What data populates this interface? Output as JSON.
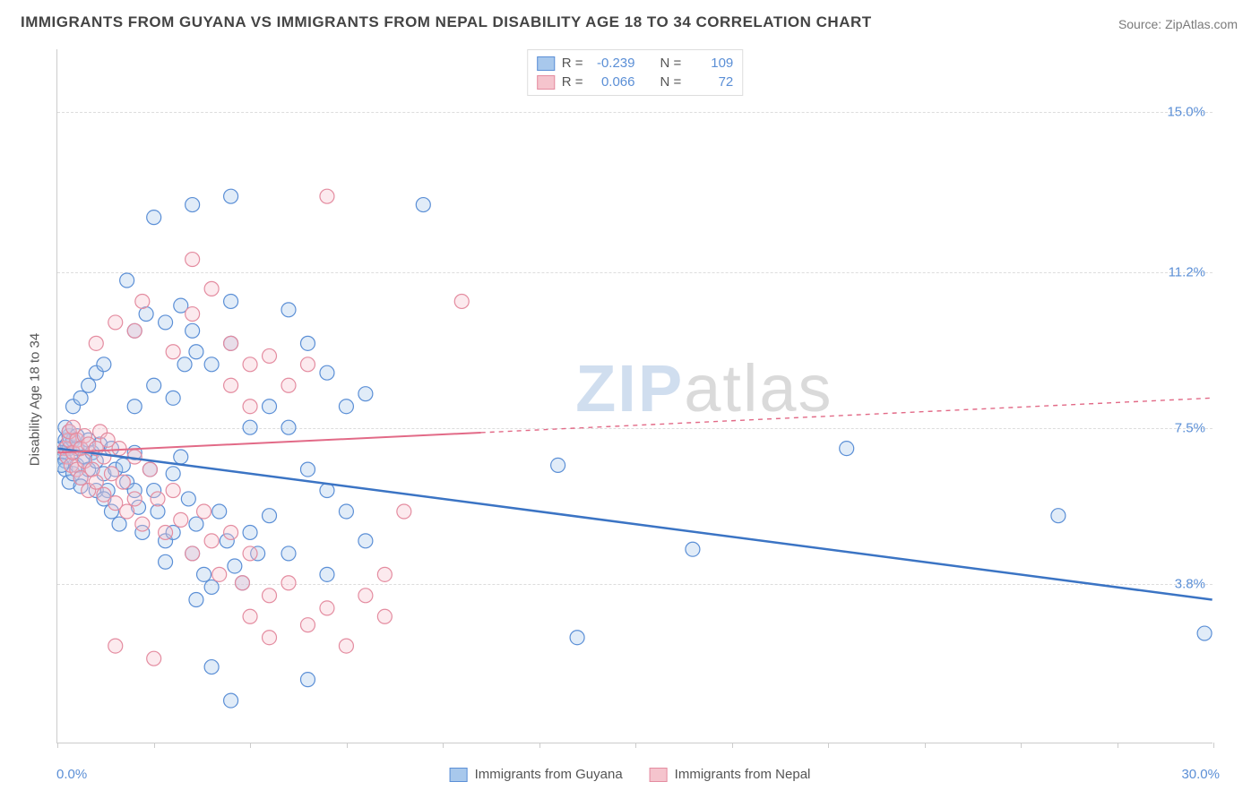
{
  "title": "IMMIGRANTS FROM GUYANA VS IMMIGRANTS FROM NEPAL DISABILITY AGE 18 TO 34 CORRELATION CHART",
  "source_label": "Source:",
  "source_value": "ZipAtlas.com",
  "y_axis_label": "Disability Age 18 to 34",
  "watermark_a": "ZIP",
  "watermark_b": "atlas",
  "chart": {
    "type": "scatter",
    "xlim": [
      0.0,
      30.0
    ],
    "ylim": [
      0.0,
      16.5
    ],
    "x_min_label": "0.0%",
    "x_max_label": "30.0%",
    "y_ticks": [
      3.8,
      7.5,
      11.2,
      15.0
    ],
    "y_tick_labels": [
      "3.8%",
      "7.5%",
      "11.2%",
      "15.0%"
    ],
    "x_tick_positions": [
      0,
      2.5,
      5.0,
      7.5,
      10.0,
      12.5,
      15.0,
      17.5,
      20.0,
      22.5,
      25.0,
      27.5,
      30.0
    ],
    "background_color": "#ffffff",
    "grid_color": "#dddddd",
    "axis_color": "#cccccc",
    "tick_label_color": "#5b8fd6",
    "marker_radius": 8,
    "marker_stroke_width": 1.2,
    "marker_fill_opacity": 0.35,
    "series": [
      {
        "name": "Immigrants from Guyana",
        "color_fill": "#a8c8ec",
        "color_stroke": "#5b8fd6",
        "R": "-0.239",
        "N": "109",
        "trend": {
          "x1": 0.0,
          "y1": 7.0,
          "x2": 30.0,
          "y2": 3.4,
          "solid_until_x": 30.0,
          "stroke": "#3b74c4",
          "width": 2.5
        },
        "points": [
          [
            0.1,
            7.0
          ],
          [
            0.2,
            7.2
          ],
          [
            0.15,
            6.8
          ],
          [
            0.25,
            7.1
          ],
          [
            0.3,
            7.0
          ],
          [
            0.1,
            6.9
          ],
          [
            0.2,
            6.7
          ],
          [
            0.3,
            7.3
          ],
          [
            0.2,
            6.5
          ],
          [
            0.1,
            6.6
          ],
          [
            0.3,
            6.2
          ],
          [
            0.4,
            6.4
          ],
          [
            0.2,
            7.5
          ],
          [
            0.4,
            7.2
          ],
          [
            0.5,
            7.0
          ],
          [
            0.3,
            7.4
          ],
          [
            0.4,
            6.9
          ],
          [
            0.5,
            6.6
          ],
          [
            0.6,
            6.3
          ],
          [
            0.5,
            7.3
          ],
          [
            0.6,
            7.0
          ],
          [
            0.7,
            6.8
          ],
          [
            0.8,
            6.5
          ],
          [
            0.6,
            6.1
          ],
          [
            0.8,
            7.2
          ],
          [
            0.9,
            6.9
          ],
          [
            1.0,
            6.7
          ],
          [
            1.0,
            6.0
          ],
          [
            1.1,
            7.1
          ],
          [
            1.2,
            6.4
          ],
          [
            1.3,
            6.0
          ],
          [
            1.4,
            7.0
          ],
          [
            1.5,
            6.5
          ],
          [
            1.2,
            5.8
          ],
          [
            1.4,
            5.5
          ],
          [
            1.6,
            5.2
          ],
          [
            1.7,
            6.6
          ],
          [
            1.8,
            6.2
          ],
          [
            2.0,
            6.9
          ],
          [
            2.0,
            6.0
          ],
          [
            2.1,
            5.6
          ],
          [
            2.2,
            5.0
          ],
          [
            2.4,
            6.5
          ],
          [
            2.5,
            6.0
          ],
          [
            2.6,
            5.5
          ],
          [
            2.8,
            4.8
          ],
          [
            3.0,
            6.4
          ],
          [
            3.0,
            5.0
          ],
          [
            2.8,
            4.3
          ],
          [
            3.2,
            6.8
          ],
          [
            3.4,
            5.8
          ],
          [
            3.6,
            5.2
          ],
          [
            3.5,
            4.5
          ],
          [
            3.8,
            4.0
          ],
          [
            4.0,
            3.7
          ],
          [
            3.6,
            3.4
          ],
          [
            4.2,
            5.5
          ],
          [
            4.4,
            4.8
          ],
          [
            4.6,
            4.2
          ],
          [
            4.8,
            3.8
          ],
          [
            5.0,
            5.0
          ],
          [
            5.2,
            4.5
          ],
          [
            5.5,
            5.4
          ],
          [
            2.0,
            8.0
          ],
          [
            2.5,
            8.5
          ],
          [
            3.0,
            8.2
          ],
          [
            3.3,
            9.0
          ],
          [
            3.6,
            9.3
          ],
          [
            4.0,
            9.0
          ],
          [
            4.5,
            9.5
          ],
          [
            2.0,
            9.8
          ],
          [
            2.3,
            10.2
          ],
          [
            2.8,
            10.0
          ],
          [
            3.2,
            10.4
          ],
          [
            3.5,
            9.8
          ],
          [
            1.8,
            11.0
          ],
          [
            4.5,
            10.5
          ],
          [
            6.0,
            10.3
          ],
          [
            6.5,
            9.5
          ],
          [
            7.0,
            8.8
          ],
          [
            7.5,
            8.0
          ],
          [
            8.0,
            8.3
          ],
          [
            6.0,
            7.5
          ],
          [
            6.5,
            6.5
          ],
          [
            7.0,
            6.0
          ],
          [
            7.5,
            5.5
          ],
          [
            5.0,
            7.5
          ],
          [
            5.5,
            8.0
          ],
          [
            6.0,
            4.5
          ],
          [
            7.0,
            4.0
          ],
          [
            8.0,
            4.8
          ],
          [
            2.5,
            12.5
          ],
          [
            3.5,
            12.8
          ],
          [
            4.5,
            13.0
          ],
          [
            9.5,
            12.8
          ],
          [
            4.0,
            1.8
          ],
          [
            4.5,
            1.0
          ],
          [
            6.5,
            1.5
          ],
          [
            13.0,
            6.6
          ],
          [
            13.5,
            2.5
          ],
          [
            16.5,
            4.6
          ],
          [
            20.5,
            7.0
          ],
          [
            26.0,
            5.4
          ],
          [
            29.8,
            2.6
          ],
          [
            0.4,
            8.0
          ],
          [
            0.6,
            8.2
          ],
          [
            0.8,
            8.5
          ],
          [
            1.0,
            8.8
          ],
          [
            1.2,
            9.0
          ]
        ]
      },
      {
        "name": "Immigrants from Nepal",
        "color_fill": "#f5c4cd",
        "color_stroke": "#e48ca0",
        "R": "0.066",
        "N": "72",
        "trend": {
          "x1": 0.0,
          "y1": 6.9,
          "x2": 30.0,
          "y2": 8.2,
          "solid_until_x": 11.0,
          "stroke": "#e26a87",
          "width": 2
        },
        "points": [
          [
            0.2,
            7.0
          ],
          [
            0.3,
            7.2
          ],
          [
            0.25,
            6.8
          ],
          [
            0.35,
            6.6
          ],
          [
            0.3,
            7.4
          ],
          [
            0.4,
            6.9
          ],
          [
            0.4,
            7.5
          ],
          [
            0.5,
            7.2
          ],
          [
            0.5,
            6.5
          ],
          [
            0.6,
            7.0
          ],
          [
            0.6,
            6.3
          ],
          [
            0.7,
            7.3
          ],
          [
            0.7,
            6.7
          ],
          [
            0.8,
            6.0
          ],
          [
            0.8,
            7.1
          ],
          [
            0.9,
            6.5
          ],
          [
            1.0,
            7.0
          ],
          [
            1.0,
            6.2
          ],
          [
            1.1,
            7.4
          ],
          [
            1.2,
            6.8
          ],
          [
            1.2,
            5.9
          ],
          [
            1.3,
            7.2
          ],
          [
            1.4,
            6.4
          ],
          [
            1.5,
            5.7
          ],
          [
            1.6,
            7.0
          ],
          [
            1.7,
            6.2
          ],
          [
            1.8,
            5.5
          ],
          [
            2.0,
            6.8
          ],
          [
            2.0,
            5.8
          ],
          [
            2.2,
            5.2
          ],
          [
            2.4,
            6.5
          ],
          [
            2.6,
            5.8
          ],
          [
            2.8,
            5.0
          ],
          [
            3.0,
            6.0
          ],
          [
            3.2,
            5.3
          ],
          [
            3.5,
            4.5
          ],
          [
            3.8,
            5.5
          ],
          [
            4.0,
            4.8
          ],
          [
            4.2,
            4.0
          ],
          [
            4.5,
            5.0
          ],
          [
            4.8,
            3.8
          ],
          [
            5.0,
            4.5
          ],
          [
            5.5,
            3.5
          ],
          [
            5.0,
            3.0
          ],
          [
            5.5,
            2.5
          ],
          [
            6.0,
            3.8
          ],
          [
            6.5,
            2.8
          ],
          [
            7.0,
            3.2
          ],
          [
            7.5,
            2.3
          ],
          [
            8.0,
            3.5
          ],
          [
            8.5,
            3.0
          ],
          [
            1.0,
            9.5
          ],
          [
            1.5,
            10.0
          ],
          [
            2.0,
            9.8
          ],
          [
            2.2,
            10.5
          ],
          [
            3.0,
            9.3
          ],
          [
            3.5,
            10.2
          ],
          [
            4.0,
            10.8
          ],
          [
            4.5,
            9.5
          ],
          [
            5.0,
            9.0
          ],
          [
            5.5,
            9.2
          ],
          [
            6.0,
            8.5
          ],
          [
            6.5,
            9.0
          ],
          [
            7.0,
            13.0
          ],
          [
            3.5,
            11.5
          ],
          [
            4.5,
            8.5
          ],
          [
            5.0,
            8.0
          ],
          [
            8.5,
            4.0
          ],
          [
            9.0,
            5.5
          ],
          [
            10.5,
            10.5
          ],
          [
            1.5,
            2.3
          ],
          [
            2.5,
            2.0
          ]
        ]
      }
    ]
  },
  "legend_top": {
    "r_label": "R =",
    "n_label": "N ="
  }
}
